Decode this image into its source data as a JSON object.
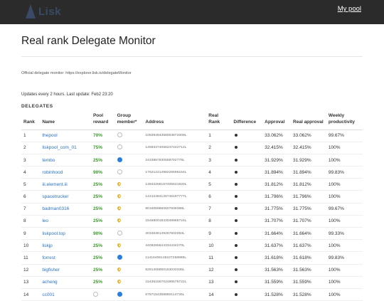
{
  "header": {
    "logo_text": "Lisk",
    "my_pool": "My pool"
  },
  "page": {
    "title": "Real rank Delegate Monitor",
    "official": "Official delegate monitor: https://explorer.lisk.io/delegateMonitor",
    "updates": "Updates every 2 hours. Last update: Feb2 23:20",
    "section": "DELEGATES"
  },
  "table": {
    "headers": [
      "Rank",
      "Name",
      "Pool reward",
      "Group member*",
      "Address",
      "Real Rank",
      "Difference",
      "Approval",
      "Real approval",
      "Weekly productivity"
    ],
    "rows": [
      {
        "rank": "1",
        "name": "thepool",
        "reward": "70%",
        "member": "empty",
        "address": "10839494368003872009L",
        "real_rank": "1",
        "approval": "33.062%",
        "real_approval": "33.062%",
        "productivity": "99.67%"
      },
      {
        "rank": "2",
        "name": "liskpool_com_01",
        "reward": "75%",
        "member": "empty",
        "address": "14593474056247442712L",
        "real_rank": "2",
        "approval": "32.415%",
        "real_approval": "32.415%",
        "productivity": "100%"
      },
      {
        "rank": "3",
        "name": "tembo",
        "reward": "25%",
        "member": "blue",
        "address": "2433857930558702776L",
        "real_rank": "3",
        "approval": "31.929%",
        "real_approval": "31.929%",
        "productivity": "100%"
      },
      {
        "rank": "4",
        "name": "robinhood",
        "reward": "90%",
        "member": "empty",
        "address": "17621221498226596154L",
        "real_rank": "4",
        "approval": "31.894%",
        "real_approval": "31.894%",
        "productivity": "99.83%"
      },
      {
        "rank": "5",
        "name": "iii.element.iii",
        "reward": "25%",
        "member": "pin",
        "address": "13942256167405531820L",
        "real_rank": "5",
        "approval": "31.812%",
        "real_approval": "31.812%",
        "productivity": "100%"
      },
      {
        "rank": "6",
        "name": "spacetrucker",
        "reward": "25%",
        "member": "pin",
        "address": "14212484126746197777L",
        "real_rank": "6",
        "approval": "31.796%",
        "real_approval": "31.796%",
        "productivity": "100%"
      },
      {
        "rank": "7",
        "name": "badman0316",
        "reward": "25%",
        "member": "pin",
        "address": "8015059860607939388L",
        "real_rank": "7",
        "approval": "31.775%",
        "real_approval": "31.775%",
        "productivity": "99.67%"
      },
      {
        "rank": "8",
        "name": "leo",
        "reward": "25%",
        "member": "pin",
        "address": "15458001843048965724L",
        "real_rank": "8",
        "approval": "31.707%",
        "real_approval": "31.707%",
        "productivity": "100%"
      },
      {
        "rank": "9",
        "name": "liskpool.top",
        "reward": "90%",
        "member": "empty",
        "address": "4034636149257602063L",
        "real_rank": "9",
        "approval": "31.664%",
        "real_approval": "31.664%",
        "productivity": "99.33%"
      },
      {
        "rank": "10",
        "name": "liskjp",
        "reward": "25%",
        "member": "pin",
        "address": "4409265644334434270L",
        "real_rank": "10",
        "approval": "31.637%",
        "real_approval": "31.637%",
        "productivity": "100%"
      },
      {
        "rank": "11",
        "name": "forrest",
        "reward": "25%",
        "member": "blue",
        "address": "11416406146107258985L",
        "real_rank": "11",
        "approval": "31.618%",
        "real_approval": "31.618%",
        "productivity": "99.83%"
      },
      {
        "rank": "12",
        "name": "bigfisher",
        "reward": "25%",
        "member": "pin",
        "address": "6281405850163033335L",
        "real_rank": "12",
        "approval": "31.563%",
        "real_approval": "31.563%",
        "productivity": "100%"
      },
      {
        "rank": "13",
        "name": "acheng",
        "reward": "25%",
        "member": "pin",
        "address": "15435156702499576722L",
        "real_rank": "13",
        "approval": "31.559%",
        "real_approval": "31.559%",
        "productivity": "100%"
      },
      {
        "rank": "14",
        "name": "cc001",
        "reward": "empty",
        "member": "blue",
        "address": "6787154358850114730L",
        "real_rank": "14",
        "approval": "31.528%",
        "real_approval": "31.528%",
        "productivity": "100%"
      }
    ]
  },
  "icons": {
    "logo": "lisk-logo-icon",
    "member_empty": "empty-circle-icon",
    "member_blue": "blue-dot-icon",
    "member_pin": "pin-icon",
    "difference": "dot-icon"
  },
  "colors": {
    "topbar": "#2b2b2b",
    "link": "#2a72c8",
    "reward": "#3a9a2a",
    "blue_dot": "#2a7de1",
    "pin": "#e6b32a"
  }
}
